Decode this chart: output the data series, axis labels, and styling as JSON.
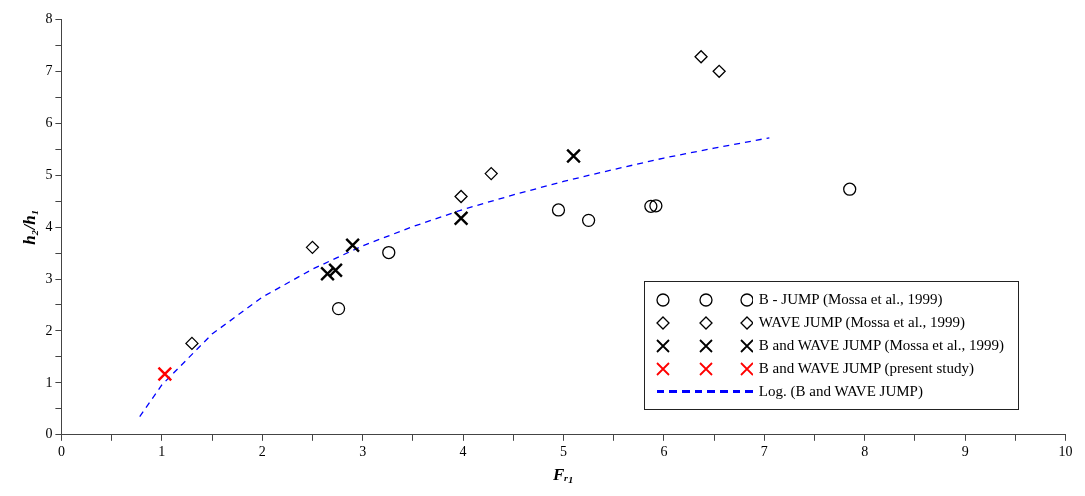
{
  "chart_data": {
    "type": "scatter",
    "xlabel": "Fᵣ₁",
    "ylabel": "h₂/h₁",
    "xlim": [
      0,
      10
    ],
    "ylim": [
      0,
      8
    ],
    "xticks": [
      0,
      {
        "value": 0.5,
        "label": null
      },
      1,
      {
        "value": 1.5,
        "label": null
      },
      2,
      {
        "value": 2.5,
        "label": null
      },
      3,
      {
        "value": 3.5,
        "label": null
      },
      4,
      {
        "value": 4.5,
        "label": null
      },
      5,
      {
        "value": 5.5,
        "label": null
      },
      6,
      {
        "value": 6.5,
        "label": null
      },
      7,
      {
        "value": 7.5,
        "label": null
      },
      8,
      {
        "value": 8.5,
        "label": null
      },
      9,
      {
        "value": 9.5,
        "label": null
      },
      10
    ],
    "yticks": [
      0,
      {
        "value": 0.5,
        "label": null
      },
      1,
      {
        "value": 1.5,
        "label": null
      },
      2,
      {
        "value": 2.5,
        "label": null
      },
      3,
      {
        "value": 3.5,
        "label": null
      },
      4,
      {
        "value": 4.5,
        "label": null
      },
      5,
      {
        "value": 5.5,
        "label": null
      },
      6,
      {
        "value": 6.5,
        "label": null
      },
      7,
      {
        "value": 7.5,
        "label": null
      },
      8
    ],
    "grid": false,
    "legend": "bottom right",
    "series": [
      {
        "name": "B - JUMP (Mossa et al., 1999)",
        "marker": "circle",
        "color": "#000000",
        "x": [
          2.76,
          3.26,
          4.95,
          5.25,
          5.87,
          5.92,
          7.85
        ],
        "values": [
          2.43,
          3.51,
          4.33,
          4.13,
          4.4,
          4.41,
          4.73
        ]
      },
      {
        "name": "WAVE JUMP  (Mossa et al., 1999)",
        "marker": "diamond",
        "color": "#000000",
        "x": [
          1.3,
          2.5,
          3.98,
          4.28,
          6.37,
          6.55
        ],
        "values": [
          1.76,
          3.61,
          4.59,
          5.03,
          7.28,
          7.0
        ]
      },
      {
        "name": "B and WAVE JUMP (Mossa et al., 1999)",
        "marker": "cross",
        "color": "#000000",
        "x": [
          2.65,
          2.73,
          2.9,
          3.98,
          5.1
        ],
        "values": [
          3.1,
          3.17,
          3.65,
          4.17,
          5.37
        ]
      },
      {
        "name": "B and WAVE  JUMP (present study)",
        "marker": "cross",
        "color": "#ff0000",
        "x": [
          1.03
        ],
        "values": [
          1.17
        ]
      },
      {
        "name": "Log. (B and WAVE JUMP)",
        "type": "line",
        "marker": "none",
        "line_style": "dashed",
        "color": "#0000ff",
        "x": [
          0.78,
          1,
          1.5,
          2,
          2.5,
          3,
          3.5,
          4,
          4.5,
          5,
          5.5,
          6,
          6.5,
          7.05
        ],
        "values": [
          0.35,
          0.96,
          1.94,
          2.65,
          3.19,
          3.64,
          4.01,
          4.34,
          4.62,
          4.88,
          5.11,
          5.33,
          5.52,
          5.72
        ]
      }
    ]
  }
}
